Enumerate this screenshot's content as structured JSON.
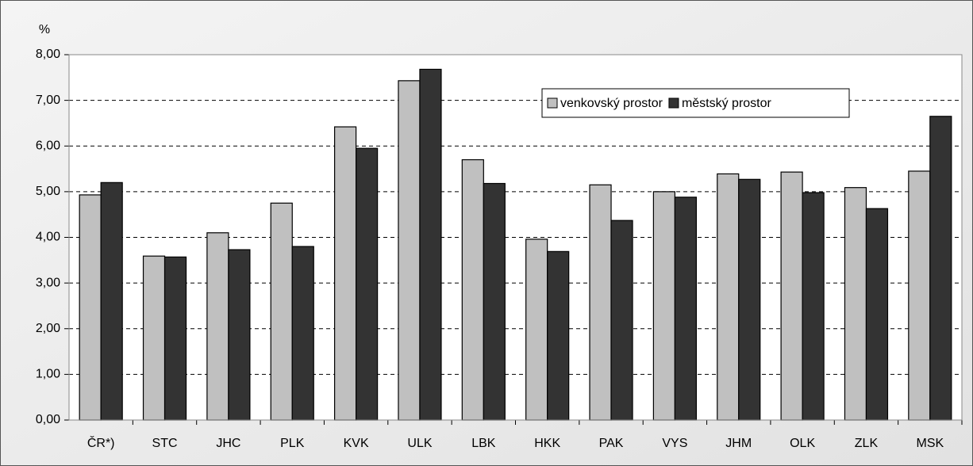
{
  "chart_data": {
    "type": "bar",
    "ylabel": "%",
    "categories": [
      "ČR*)",
      "STC",
      "JHC",
      "PLK",
      "KVK",
      "ULK",
      "LBK",
      "HKK",
      "PAK",
      "VYS",
      "JHM",
      "OLK",
      "ZLK",
      "MSK"
    ],
    "series": [
      {
        "name": "venkovský prostor",
        "color": "#c0c0c0",
        "values": [
          4.93,
          3.59,
          4.1,
          4.75,
          6.42,
          7.43,
          5.7,
          3.96,
          5.15,
          5.0,
          5.39,
          5.43,
          5.09,
          5.45
        ]
      },
      {
        "name": "městský prostor",
        "color": "#333333",
        "values": [
          5.2,
          3.57,
          3.73,
          3.8,
          5.95,
          7.68,
          5.18,
          3.69,
          4.37,
          4.88,
          5.27,
          4.98,
          4.63,
          6.65
        ]
      }
    ],
    "ylim": [
      0,
      8
    ],
    "yticks": [
      {
        "value": 0,
        "label": "0,00"
      },
      {
        "value": 1,
        "label": "1,00"
      },
      {
        "value": 2,
        "label": "2,00"
      },
      {
        "value": 3,
        "label": "3,00"
      },
      {
        "value": 4,
        "label": "4,00"
      },
      {
        "value": 5,
        "label": "5,00"
      },
      {
        "value": 6,
        "label": "6,00"
      },
      {
        "value": 7,
        "label": "7,00"
      },
      {
        "value": 8,
        "label": "8,00"
      }
    ],
    "grid": true,
    "legend": "upper right"
  }
}
